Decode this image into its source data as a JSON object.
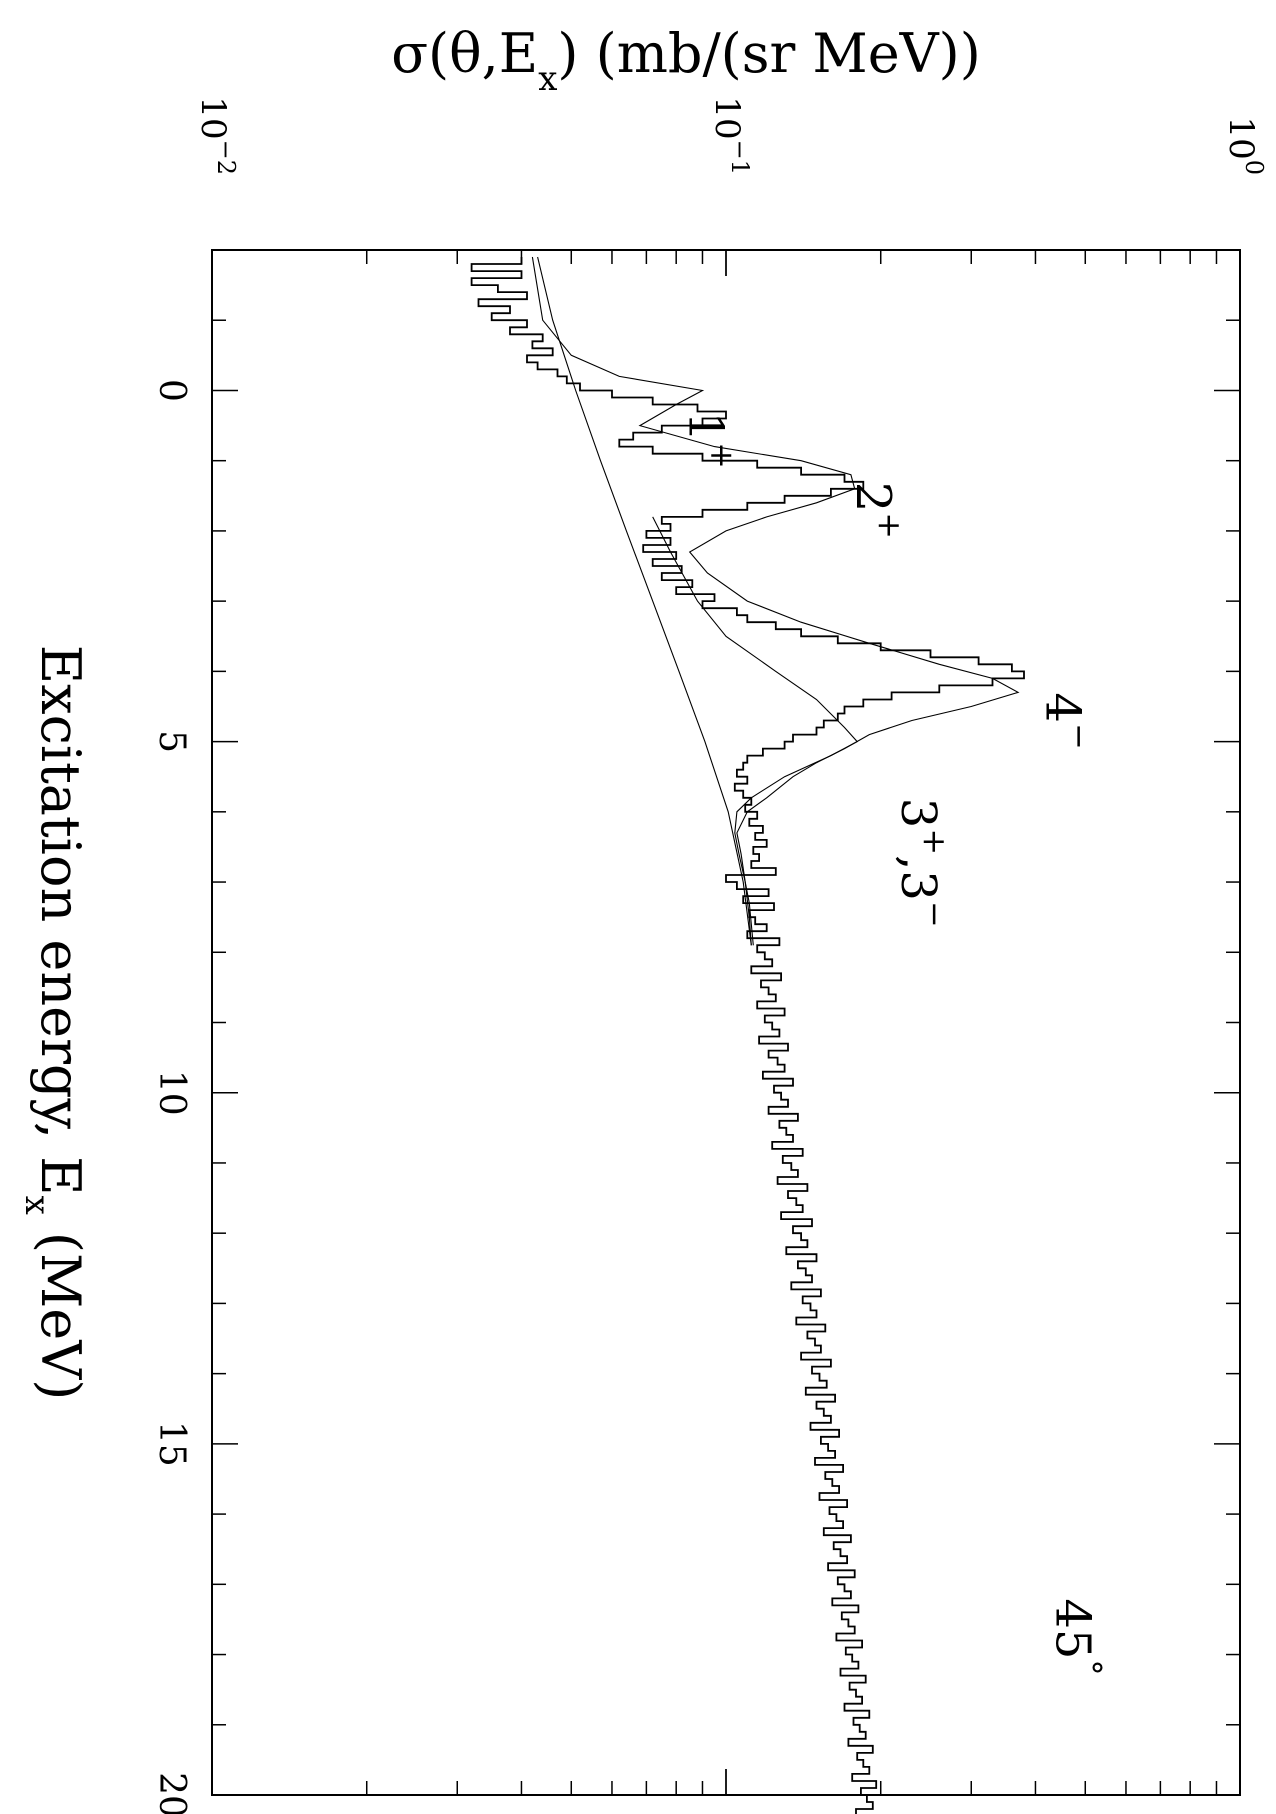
{
  "chart_data": {
    "type": "line",
    "orientation": "rotated-90",
    "xlabel": "Excitation energy, E",
    "xlabel_sub": "x",
    "xlabel_unit": " (MeV)",
    "ylabel": "σ(θ,E",
    "ylabel_sub": "x",
    "ylabel_unit": ") (mb/(sr MeV))",
    "xlim": [
      -2,
      20
    ],
    "ylim": [
      0.01,
      1
    ],
    "yscale": "log",
    "x_ticks": [
      0,
      5,
      10,
      15,
      20
    ],
    "y_ticks": [
      {
        "base": "10",
        "exp": "−2",
        "value": 0.01
      },
      {
        "base": "10",
        "exp": "−1",
        "value": 0.1
      },
      {
        "base": "10",
        "exp": "0",
        "value": 1
      }
    ],
    "annotations": [
      {
        "text": "1",
        "sup": "+",
        "x": 0.3,
        "y": 0.085
      },
      {
        "text": "2",
        "sup": "+",
        "x": 1.3,
        "y": 0.18
      },
      {
        "text": "4",
        "sup": "−",
        "x": 4.3,
        "y": 0.42
      },
      {
        "text": "3",
        "sup": "+",
        "tail": ",3",
        "tail_sup": "−",
        "x": 5.8,
        "y": 0.22
      },
      {
        "text": "45",
        "sup": "°",
        "x": 17.2,
        "y": 0.44
      }
    ],
    "series": [
      {
        "style": "histogram",
        "x_start": -1.9,
        "bin_width": 0.1,
        "values": [
          0.04,
          0.032,
          0.04,
          0.032,
          0.036,
          0.041,
          0.033,
          0.038,
          0.035,
          0.041,
          0.038,
          0.044,
          0.042,
          0.046,
          0.041,
          0.043,
          0.047,
          0.049,
          0.052,
          0.06,
          0.072,
          0.088,
          0.1,
          0.09,
          0.075,
          0.066,
          0.062,
          0.072,
          0.09,
          0.115,
          0.14,
          0.17,
          0.185,
          0.16,
          0.13,
          0.11,
          0.09,
          0.075,
          0.078,
          0.07,
          0.078,
          0.069,
          0.08,
          0.072,
          0.082,
          0.075,
          0.086,
          0.08,
          0.095,
          0.09,
          0.105,
          0.11,
          0.125,
          0.14,
          0.165,
          0.2,
          0.25,
          0.31,
          0.36,
          0.38,
          0.33,
          0.26,
          0.21,
          0.185,
          0.17,
          0.165,
          0.155,
          0.15,
          0.135,
          0.13,
          0.118,
          0.11,
          0.108,
          0.105,
          0.11,
          0.104,
          0.108,
          0.112,
          0.109,
          0.115,
          0.111,
          0.118,
          0.114,
          0.12,
          0.113,
          0.116,
          0.112,
          0.125,
          0.1,
          0.105,
          0.121,
          0.108,
          0.124,
          0.111,
          0.114,
          0.12,
          0.11,
          0.127,
          0.115,
          0.119,
          0.123,
          0.112,
          0.128,
          0.117,
          0.121,
          0.125,
          0.115,
          0.13,
          0.119,
          0.123,
          0.127,
          0.116,
          0.132,
          0.121,
          0.126,
          0.13,
          0.118,
          0.135,
          0.124,
          0.128,
          0.132,
          0.121,
          0.138,
          0.127,
          0.131,
          0.135,
          0.123,
          0.141,
          0.129,
          0.134,
          0.138,
          0.126,
          0.144,
          0.132,
          0.137,
          0.141,
          0.128,
          0.147,
          0.135,
          0.14,
          0.144,
          0.131,
          0.15,
          0.138,
          0.143,
          0.147,
          0.134,
          0.153,
          0.141,
          0.146,
          0.15,
          0.137,
          0.156,
          0.144,
          0.149,
          0.153,
          0.14,
          0.16,
          0.147,
          0.152,
          0.157,
          0.143,
          0.163,
          0.15,
          0.155,
          0.16,
          0.146,
          0.166,
          0.153,
          0.158,
          0.163,
          0.149,
          0.169,
          0.156,
          0.161,
          0.166,
          0.152,
          0.172,
          0.159,
          0.164,
          0.169,
          0.155,
          0.175,
          0.162,
          0.167,
          0.172,
          0.158,
          0.178,
          0.165,
          0.17,
          0.175,
          0.161,
          0.181,
          0.168,
          0.173,
          0.178,
          0.164,
          0.184,
          0.171,
          0.176,
          0.181,
          0.167,
          0.187,
          0.174,
          0.179,
          0.184,
          0.17,
          0.19,
          0.177,
          0.182,
          0.187,
          0.173,
          0.193,
          0.18,
          0.185,
          0.19,
          0.176,
          0.196,
          0.183,
          0.188,
          0.193,
          0.179,
          0.199,
          0.186,
          0.191,
          0.196,
          0.182
        ]
      },
      {
        "style": "line",
        "name_hint": "total fit",
        "x": [
          -1.9,
          -1.0,
          -0.5,
          -0.2,
          0.0,
          0.2,
          0.5,
          0.8,
          1.0,
          1.2,
          1.4,
          1.6,
          1.8,
          2.0,
          2.3,
          2.6,
          3.0,
          3.3,
          3.6,
          3.9,
          4.1,
          4.3,
          4.5,
          4.7,
          4.9,
          5.1,
          5.3,
          5.5,
          5.8,
          6.0,
          6.3,
          6.6,
          7.0,
          7.3,
          7.6,
          7.9
        ],
        "y": [
          0.042,
          0.044,
          0.05,
          0.062,
          0.09,
          0.08,
          0.068,
          0.095,
          0.14,
          0.175,
          0.178,
          0.15,
          0.12,
          0.1,
          0.085,
          0.092,
          0.11,
          0.14,
          0.19,
          0.26,
          0.33,
          0.37,
          0.3,
          0.23,
          0.19,
          0.17,
          0.15,
          0.135,
          0.12,
          0.11,
          0.105,
          0.107,
          0.109,
          0.111,
          0.112,
          0.113
        ]
      },
      {
        "style": "line",
        "name_hint": "background",
        "x": [
          -1.9,
          -1.0,
          0.0,
          1.0,
          2.0,
          3.0,
          4.0,
          5.0,
          6.0,
          7.0,
          7.9
        ],
        "y": [
          0.043,
          0.046,
          0.051,
          0.057,
          0.064,
          0.072,
          0.081,
          0.091,
          0.101,
          0.108,
          0.112
        ]
      },
      {
        "style": "line",
        "name_hint": "3+,3- component",
        "x": [
          1.8,
          2.3,
          3.0,
          3.5,
          4.0,
          4.4,
          4.8,
          5.0,
          5.2,
          5.5,
          5.8,
          6.0,
          6.3,
          6.6,
          7.0,
          7.5,
          7.9
        ],
        "y": [
          0.072,
          0.078,
          0.088,
          0.1,
          0.125,
          0.15,
          0.17,
          0.18,
          0.16,
          0.13,
          0.112,
          0.105,
          0.104,
          0.106,
          0.109,
          0.111,
          0.112
        ]
      }
    ]
  }
}
